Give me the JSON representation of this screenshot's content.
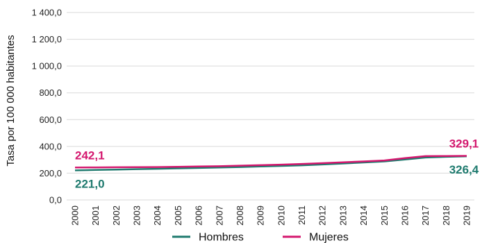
{
  "chart_data": {
    "type": "line",
    "ylabel": "Tasa por 100 000 habitantes",
    "ylim": [
      0,
      1400
    ],
    "y_ticks": [
      "0,0",
      "200,0",
      "400,0",
      "600,0",
      "800,0",
      "1 000,0",
      "1 200,0",
      "1 400,0"
    ],
    "y_tick_values": [
      0,
      200,
      400,
      600,
      800,
      1000,
      1200,
      1400
    ],
    "categories": [
      "2000",
      "2001",
      "2002",
      "2003",
      "2004",
      "2005",
      "2006",
      "2007",
      "2008",
      "2009",
      "2010",
      "2011",
      "2012",
      "2013",
      "2014",
      "2015",
      "2016",
      "2017",
      "2018",
      "2019"
    ],
    "grid": true,
    "legend_position": "bottom",
    "series": [
      {
        "name": "Hombres",
        "color": "#1e7a6e",
        "values": [
          221.0,
          224,
          227,
          230,
          233,
          236,
          239,
          242,
          246,
          250,
          254,
          259,
          265,
          272,
          280,
          288,
          302,
          317,
          322,
          326.4
        ]
      },
      {
        "name": "Mujeres",
        "color": "#d4176e",
        "values": [
          242.1,
          243,
          244,
          245,
          246,
          248,
          250,
          252,
          256,
          260,
          264,
          269,
          275,
          281,
          288,
          295,
          312,
          327,
          328,
          329.1
        ]
      }
    ],
    "annotations": [
      {
        "text": "242,1",
        "series": 1,
        "index": 0,
        "position": "above"
      },
      {
        "text": "221,0",
        "series": 0,
        "index": 0,
        "position": "below"
      },
      {
        "text": "329,1",
        "series": 1,
        "index": 19,
        "position": "above"
      },
      {
        "text": "326,4",
        "series": 0,
        "index": 19,
        "position": "below"
      }
    ]
  }
}
